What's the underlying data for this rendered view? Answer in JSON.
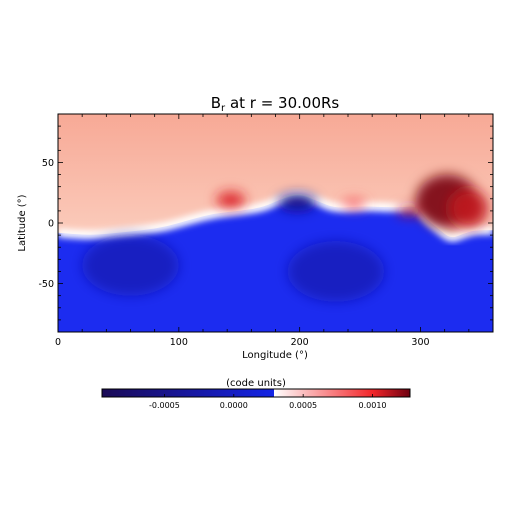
{
  "chart_data": {
    "type": "heatmap",
    "title": "B",
    "title_sub": "r",
    "title_rest": " at r = 30.00Rs",
    "xlabel": "Longitude (°)",
    "ylabel": "Latitude (°)",
    "xlim": [
      0,
      360
    ],
    "ylim": [
      -90,
      90
    ],
    "x_ticks": [
      {
        "value": 0,
        "label": "0"
      },
      {
        "value": 100,
        "label": "100"
      },
      {
        "value": 200,
        "label": "200"
      },
      {
        "value": 300,
        "label": "300"
      }
    ],
    "y_ticks": [
      {
        "value": -50,
        "label": "-50"
      },
      {
        "value": 0,
        "label": "0"
      },
      {
        "value": 50,
        "label": "50"
      }
    ],
    "colorbar": {
      "title": "(code units)",
      "range": [
        -0.00095,
        0.00127
      ],
      "ticks": [
        {
          "value": -0.0005,
          "label": "-0.0005"
        },
        {
          "value": 0.0,
          "label": "0.0000"
        },
        {
          "value": 0.0005,
          "label": "0.0005"
        },
        {
          "value": 0.001,
          "label": "0.0010"
        }
      ],
      "colors": [
        "#1a0a55",
        "#1424e6",
        "#ffffff",
        "#f2262a",
        "#6e0010"
      ]
    },
    "background_positive_color": "#f8b4a4",
    "background_negative_color": "#1c2cf0",
    "neutral_line": {
      "longitude": [
        0,
        10,
        30,
        50,
        70,
        90,
        110,
        130,
        150,
        170,
        185,
        200,
        215,
        230,
        250,
        270,
        285,
        297,
        305,
        315,
        325,
        335,
        345,
        360
      ],
      "latitude": [
        -8,
        -9,
        -10,
        -8,
        -6,
        -3,
        3,
        8,
        10,
        13,
        20,
        24,
        18,
        12,
        14,
        13,
        13,
        14,
        3,
        -5,
        -13,
        -9,
        -6,
        -6
      ]
    },
    "features": [
      {
        "lon": 322,
        "lat": 18,
        "value": 0.00125,
        "rlon": 26,
        "rlat": 22
      },
      {
        "lon": 340,
        "lat": 12,
        "value": 0.0011,
        "rlon": 16,
        "rlat": 16
      },
      {
        "lon": 143,
        "lat": 19,
        "value": 0.00105,
        "rlon": 12,
        "rlat": 7
      },
      {
        "lon": 245,
        "lat": 16,
        "value": 0.0008,
        "rlon": 10,
        "rlat": 4
      },
      {
        "lon": 290,
        "lat": 10,
        "value": 0.0011,
        "rlon": 9,
        "rlat": 4
      },
      {
        "lon": 198,
        "lat": 17,
        "value": -0.0006,
        "rlon": 16,
        "rlat": 7
      },
      {
        "lon": 60,
        "lat": -35,
        "value": -0.00035,
        "rlon": 40,
        "rlat": 25
      },
      {
        "lon": 230,
        "lat": -40,
        "value": -0.00035,
        "rlon": 40,
        "rlat": 25
      }
    ]
  }
}
